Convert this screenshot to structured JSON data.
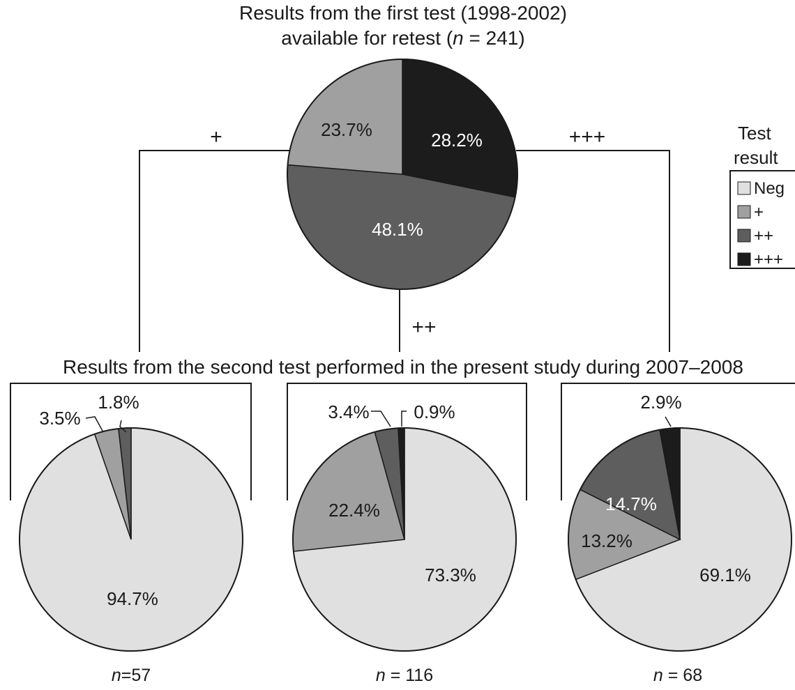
{
  "top_title_line1": "Results from the first test (1998-2002)",
  "top_title_line2_prefix": "available for retest (",
  "top_title_line2_n": "n",
  "top_title_line2_suffix": " = 241)",
  "second_title": "Results from the second test performed in the present study during 2007–2008",
  "legend": {
    "title_line1": "Test",
    "title_line2": "result",
    "items": [
      {
        "label": "Neg",
        "color": "#e0e0e0"
      },
      {
        "label": "+",
        "color": "#a0a0a0"
      },
      {
        "label": "++",
        "color": "#5e5e5e"
      },
      {
        "label": "+++",
        "color": "#1c1c1c"
      }
    ]
  },
  "branches": {
    "plus": "+",
    "plusplus": "++",
    "plusplusplus": "+++"
  },
  "chart_data": [
    {
      "type": "pie",
      "name": "first_test",
      "n_label": "n = 241",
      "slices": [
        {
          "category": "+++",
          "value": 28.2,
          "label": "28.2%",
          "color": "#1c1c1c"
        },
        {
          "category": "++",
          "value": 48.1,
          "label": "48.1%",
          "color": "#5e5e5e"
        },
        {
          "category": "+",
          "value": 23.7,
          "label": "23.7%",
          "color": "#a0a0a0"
        }
      ]
    },
    {
      "type": "pie",
      "name": "second_test_from_plus",
      "n_prefix": "n",
      "n_value": "=57",
      "slices": [
        {
          "category": "Neg",
          "value": 94.7,
          "label": "94.7%",
          "color": "#e0e0e0"
        },
        {
          "category": "+",
          "value": 3.5,
          "label": "3.5%",
          "color": "#a0a0a0"
        },
        {
          "category": "++",
          "value": 1.8,
          "label": "1.8%",
          "color": "#5e5e5e"
        }
      ]
    },
    {
      "type": "pie",
      "name": "second_test_from_plusplus",
      "n_prefix": "n",
      "n_value": " = 116",
      "slices": [
        {
          "category": "Neg",
          "value": 73.3,
          "label": "73.3%",
          "color": "#e0e0e0"
        },
        {
          "category": "+",
          "value": 22.4,
          "label": "22.4%",
          "color": "#a0a0a0"
        },
        {
          "category": "++",
          "value": 3.4,
          "label": "3.4%",
          "color": "#5e5e5e"
        },
        {
          "category": "+++",
          "value": 0.9,
          "label": "0.9%",
          "color": "#1c1c1c"
        }
      ]
    },
    {
      "type": "pie",
      "name": "second_test_from_plusplusplus",
      "n_prefix": "n",
      "n_value": " = 68",
      "slices": [
        {
          "category": "Neg",
          "value": 69.1,
          "label": "69.1%",
          "color": "#e0e0e0"
        },
        {
          "category": "+",
          "value": 13.2,
          "label": "13.2%",
          "color": "#a0a0a0"
        },
        {
          "category": "++",
          "value": 14.7,
          "label": "14.7%",
          "color": "#5e5e5e"
        },
        {
          "category": "+++",
          "value": 2.9,
          "label": "2.9%",
          "color": "#1c1c1c"
        }
      ]
    }
  ]
}
